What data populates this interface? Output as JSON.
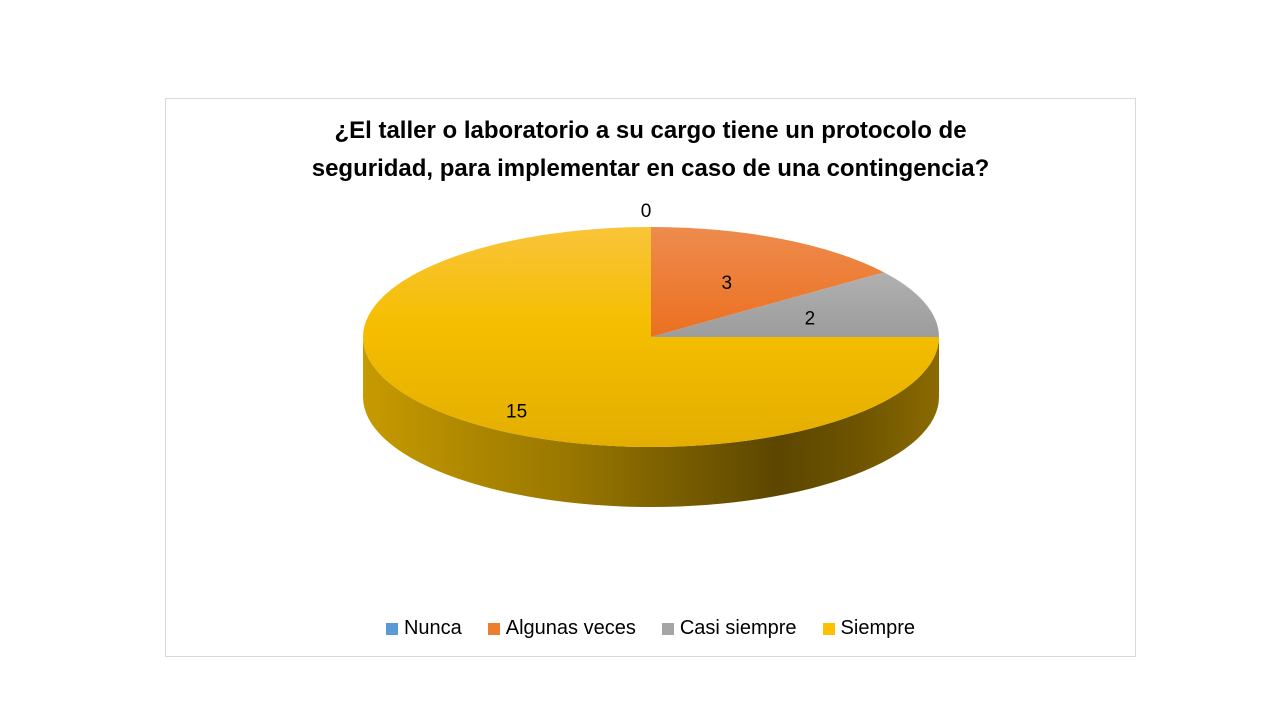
{
  "chart_data": {
    "type": "pie",
    "title_lines": [
      "¿El taller o laboratorio a su cargo tiene un protocolo de",
      "seguridad, para implementar en caso de una contingencia?"
    ],
    "categories": [
      "Nunca",
      "Algunas veces",
      "Casi siempre",
      "Siempre"
    ],
    "values": [
      0,
      3,
      2,
      15
    ],
    "colors": [
      "#5b9bd5",
      "#ed7d31",
      "#a5a5a5",
      "#ffc000"
    ],
    "legend_position": "bottom",
    "style": "3d"
  }
}
